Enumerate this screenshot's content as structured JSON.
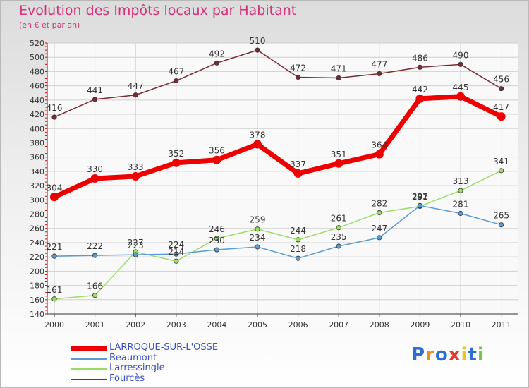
{
  "chart_data": {
    "type": "line",
    "title": "Evolution des Impôts locaux par Habitant",
    "subtitle": "(en € et par an)",
    "xlabel": "",
    "ylabel": "",
    "categories": [
      "2000",
      "2001",
      "2002",
      "2003",
      "2004",
      "2005",
      "2006",
      "2007",
      "2008",
      "2009",
      "2010",
      "2011"
    ],
    "ylim": [
      140,
      520
    ],
    "yticks": [
      140,
      160,
      180,
      200,
      220,
      240,
      260,
      280,
      300,
      320,
      340,
      360,
      380,
      400,
      420,
      440,
      460,
      480,
      500,
      520
    ],
    "grid": true,
    "series": [
      {
        "name": "LARROQUE-SUR-L'OSSE",
        "color": "#ee0000",
        "values": [
          304,
          330,
          333,
          352,
          356,
          378,
          337,
          351,
          364,
          442,
          445,
          417
        ]
      },
      {
        "name": "Beaumont",
        "color": "#5b9bd5",
        "values": [
          221,
          222,
          223,
          224,
          230,
          234,
          218,
          235,
          247,
          292,
          281,
          265
        ]
      },
      {
        "name": "Larressingle",
        "color": "#99dd66",
        "values": [
          161,
          166,
          227,
          214,
          246,
          259,
          244,
          261,
          282,
          291,
          313,
          341
        ]
      },
      {
        "name": "Fourcès",
        "color": "#7a2a33",
        "values": [
          416,
          441,
          447,
          467,
          492,
          510,
          472,
          471,
          477,
          486,
          490,
          456
        ]
      }
    ]
  },
  "legend": {
    "items": [
      {
        "label": "LARROQUE-SUR-L'OSSE",
        "color": "#ee0000"
      },
      {
        "label": "Beaumont",
        "color": "#5b9bd5"
      },
      {
        "label": "Larressingle",
        "color": "#99dd66"
      },
      {
        "label": "Fourcès",
        "color": "#7a2a33"
      }
    ]
  },
  "logo": {
    "letters": [
      "P",
      "r",
      "o",
      "x",
      "i",
      "t",
      "i"
    ],
    "colors": [
      "#2d6fd1",
      "#f28c1e",
      "#2d6fd1",
      "#e33b2d",
      "#f2c21e",
      "#2d6fd1",
      "#7cc24a"
    ]
  }
}
